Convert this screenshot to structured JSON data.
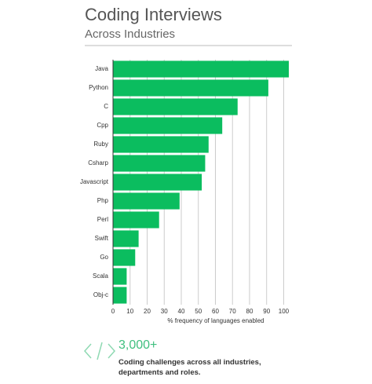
{
  "chart_data": {
    "type": "bar",
    "orientation": "horizontal",
    "title": "Coding Interviews",
    "subtitle": "Across Industries",
    "categories": [
      "Java",
      "Python",
      "C",
      "Cpp",
      "Ruby",
      "Csharp",
      "Javascript",
      "Php",
      "Perl",
      "Swift",
      "Go",
      "Scala",
      "Obj-c"
    ],
    "values": [
      103,
      91,
      73,
      64,
      56,
      54,
      52,
      39,
      27,
      15,
      13,
      8,
      8
    ],
    "color": "#0bbd5f",
    "xlim": [
      0,
      103
    ],
    "xticks": [
      0,
      10,
      20,
      30,
      40,
      50,
      60,
      70,
      80,
      90,
      100
    ],
    "xlabel": "% frequency of languages enabled",
    "grid": true
  },
  "callout": {
    "value": "3,000+",
    "text": "Coding challenges across all industries, departments and roles."
  }
}
